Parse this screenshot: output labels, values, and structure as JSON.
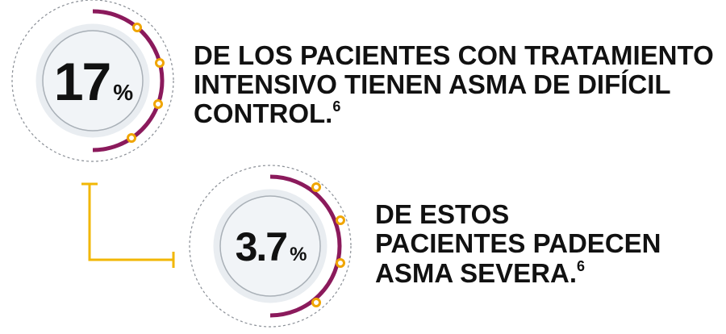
{
  "stats": [
    {
      "value": "17",
      "unit": "%",
      "lines": [
        "DE LOS PACIENTES CON TRATAMIENTO",
        "INTENSIVO TIENEN ASMA DE DIFÍCIL",
        "CONTROL."
      ],
      "reference": "6"
    },
    {
      "value": "3.7",
      "unit": "%",
      "lines": [
        "DE ESTOS",
        "PACIENTES PADECEN",
        "ASMA SEVERA."
      ],
      "reference": "6"
    }
  ]
}
